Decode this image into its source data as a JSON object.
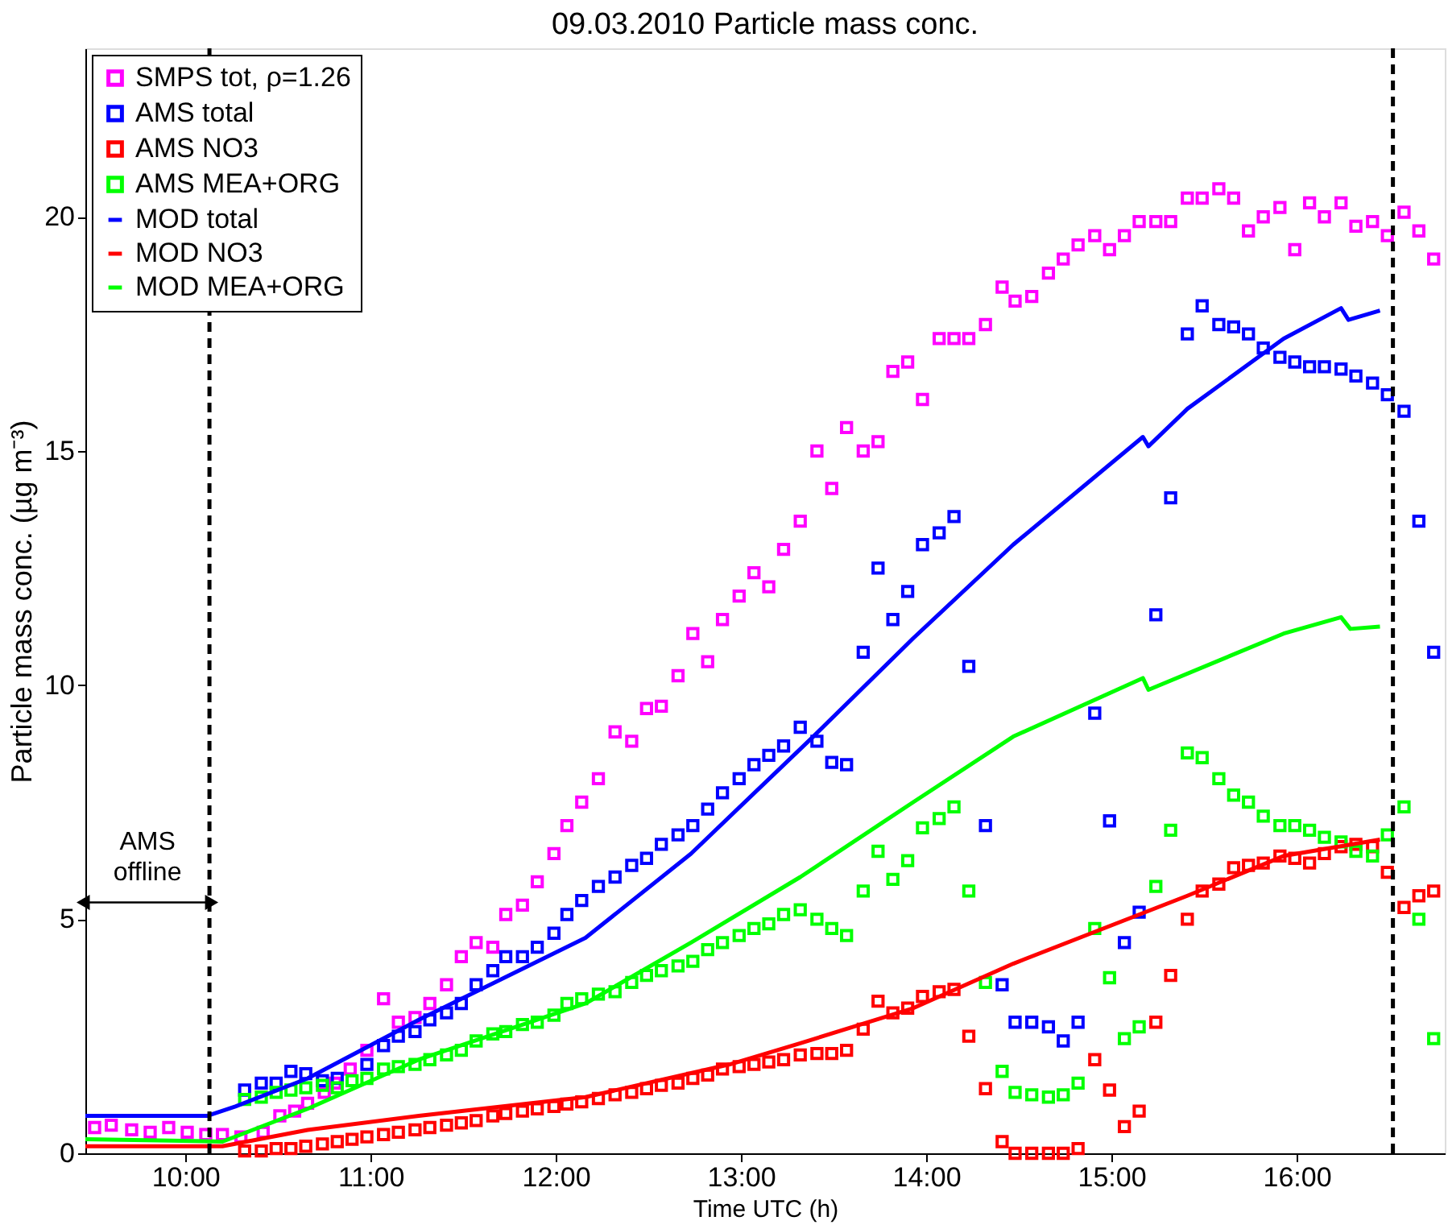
{
  "chart_data": {
    "type": "scatter",
    "title": "09.03.2010  Particle mass conc.",
    "xlabel": "Time UTC (h)",
    "ylabel": "Particle mass conc. (µg m⁻³)",
    "xlim": [
      9.46,
      16.8
    ],
    "ylim": [
      0,
      23.6
    ],
    "xticks": [
      {
        "value": 10,
        "label": "10:00"
      },
      {
        "value": 11,
        "label": "11:00"
      },
      {
        "value": 12,
        "label": "12:00"
      },
      {
        "value": 13,
        "label": "13:00"
      },
      {
        "value": 14,
        "label": "14:00"
      },
      {
        "value": 15,
        "label": "15:00"
      },
      {
        "value": 16,
        "label": "16:00"
      }
    ],
    "yticks": [
      0,
      5,
      10,
      15,
      20
    ],
    "grid": false,
    "legend": "top left",
    "marker": "square",
    "series": [
      {
        "name": "SMPS tot, ρ=1.26",
        "color": "#ff00ff",
        "x": [
          9.51,
          9.6,
          9.71,
          9.81,
          9.91,
          10.01,
          10.11,
          10.2,
          10.3,
          10.42,
          10.51,
          10.59,
          10.66,
          10.75,
          10.81,
          10.89,
          10.98,
          11.07,
          11.15,
          11.24,
          11.32,
          11.41,
          11.49,
          11.57,
          11.66,
          11.73,
          11.82,
          11.9,
          11.99,
          12.06,
          12.14,
          12.23,
          12.32,
          12.41,
          12.49,
          12.57,
          12.66,
          12.74,
          12.82,
          12.9,
          12.99,
          13.07,
          13.15,
          13.23,
          13.32,
          13.41,
          13.49,
          13.57,
          13.66,
          13.74,
          13.82,
          13.9,
          13.98,
          14.07,
          14.15,
          14.23,
          14.32,
          14.41,
          14.48,
          14.57,
          14.66,
          14.74,
          14.82,
          14.91,
          14.99,
          15.07,
          15.15,
          15.24,
          15.32,
          15.41,
          15.49,
          15.58,
          15.66,
          15.74,
          15.82,
          15.91,
          15.99,
          16.07,
          16.15,
          16.24,
          16.32,
          16.41,
          16.49,
          16.58,
          16.66,
          16.74
        ],
        "values": [
          0.55,
          0.6,
          0.5,
          0.45,
          0.55,
          0.45,
          0.4,
          0.4,
          0.35,
          0.45,
          0.8,
          0.9,
          1.07,
          1.3,
          1.5,
          1.8,
          2.2,
          3.3,
          2.8,
          2.9,
          3.2,
          3.6,
          4.2,
          4.5,
          4.4,
          5.1,
          5.3,
          5.8,
          6.4,
          7.0,
          7.5,
          8.0,
          9.0,
          8.8,
          9.5,
          9.55,
          10.2,
          11.1,
          10.5,
          11.4,
          11.9,
          12.4,
          12.1,
          12.9,
          13.5,
          15.0,
          14.2,
          15.5,
          15.0,
          15.2,
          16.7,
          16.9,
          16.1,
          17.4,
          17.4,
          17.4,
          17.7,
          18.5,
          18.2,
          18.3,
          18.8,
          19.1,
          19.4,
          19.6,
          19.3,
          19.6,
          19.9,
          19.9,
          19.9,
          20.4,
          20.4,
          20.6,
          20.4,
          19.7,
          20.0,
          20.2,
          19.3,
          20.3,
          20.0,
          20.3,
          19.8,
          19.9,
          19.6,
          20.1,
          19.7,
          19.1
        ]
      },
      {
        "name": "AMS total",
        "color": "#0000ff",
        "x": [
          10.32,
          10.41,
          10.49,
          10.57,
          10.65,
          10.74,
          10.82,
          10.9,
          10.98,
          11.07,
          11.15,
          11.24,
          11.32,
          11.41,
          11.49,
          11.57,
          11.66,
          11.73,
          11.82,
          11.9,
          11.99,
          12.06,
          12.14,
          12.23,
          12.32,
          12.41,
          12.49,
          12.57,
          12.66,
          12.74,
          12.82,
          12.9,
          12.99,
          13.07,
          13.15,
          13.23,
          13.32,
          13.41,
          13.49,
          13.57,
          13.66,
          13.74,
          13.82,
          13.9,
          13.98,
          14.07,
          14.15,
          14.23,
          14.32,
          14.41,
          14.48,
          14.57,
          14.66,
          14.74,
          14.82,
          14.91,
          14.99,
          15.07,
          15.15,
          15.24,
          15.32,
          15.41,
          15.49,
          15.58,
          15.66,
          15.74,
          15.82,
          15.91,
          15.99,
          16.07,
          16.15,
          16.24,
          16.32,
          16.41,
          16.49,
          16.58,
          16.66,
          16.74
        ],
        "values": [
          1.35,
          1.5,
          1.5,
          1.75,
          1.7,
          1.55,
          1.6,
          null,
          1.9,
          2.3,
          2.5,
          2.6,
          2.85,
          3.0,
          3.2,
          3.6,
          3.9,
          4.2,
          4.2,
          4.4,
          4.7,
          5.1,
          5.4,
          5.7,
          5.9,
          6.15,
          6.3,
          6.6,
          6.8,
          7.0,
          7.35,
          7.7,
          8.0,
          8.3,
          8.5,
          8.7,
          9.1,
          8.8,
          8.35,
          8.3,
          10.7,
          12.5,
          11.4,
          12.0,
          13.0,
          13.25,
          13.6,
          10.4,
          7.0,
          3.6,
          2.8,
          2.8,
          2.7,
          2.4,
          2.8,
          9.4,
          7.1,
          4.5,
          5.15,
          11.5,
          14.0,
          17.5,
          18.1,
          17.7,
          17.65,
          17.5,
          17.2,
          17.0,
          16.9,
          16.8,
          16.8,
          16.75,
          16.6,
          16.45,
          16.2,
          15.85,
          13.5,
          10.7
        ]
      },
      {
        "name": "AMS NO3",
        "color": "#ff0000",
        "x": [
          10.32,
          10.41,
          10.49,
          10.57,
          10.65,
          10.74,
          10.82,
          10.9,
          10.98,
          11.07,
          11.15,
          11.24,
          11.32,
          11.41,
          11.49,
          11.57,
          11.66,
          11.73,
          11.82,
          11.9,
          11.99,
          12.06,
          12.14,
          12.23,
          12.32,
          12.41,
          12.49,
          12.57,
          12.66,
          12.74,
          12.82,
          12.9,
          12.99,
          13.07,
          13.15,
          13.23,
          13.32,
          13.41,
          13.49,
          13.57,
          13.66,
          13.74,
          13.82,
          13.9,
          13.98,
          14.07,
          14.15,
          14.23,
          14.32,
          14.41,
          14.48,
          14.57,
          14.66,
          14.74,
          14.82,
          14.91,
          14.99,
          15.07,
          15.15,
          15.24,
          15.32,
          15.41,
          15.49,
          15.58,
          15.66,
          15.74,
          15.82,
          15.91,
          15.99,
          16.07,
          16.15,
          16.24,
          16.32,
          16.41,
          16.49,
          16.58,
          16.66,
          16.74
        ],
        "values": [
          0.05,
          0.05,
          0.1,
          0.1,
          0.15,
          0.2,
          0.25,
          0.3,
          0.35,
          0.4,
          0.45,
          0.5,
          0.55,
          0.6,
          0.65,
          0.7,
          0.8,
          0.85,
          0.9,
          0.95,
          1.0,
          1.05,
          1.1,
          1.17,
          1.25,
          1.3,
          1.38,
          1.45,
          1.5,
          1.6,
          1.67,
          1.8,
          1.85,
          1.9,
          1.95,
          2.0,
          2.1,
          2.13,
          2.13,
          2.2,
          2.65,
          3.25,
          3.0,
          3.1,
          3.35,
          3.45,
          3.5,
          2.5,
          1.38,
          0.25,
          0.0,
          0.0,
          0.0,
          0.0,
          0.1,
          2.0,
          1.35,
          0.57,
          0.9,
          2.8,
          3.8,
          5.0,
          5.6,
          5.75,
          6.1,
          6.15,
          6.2,
          6.35,
          6.3,
          6.2,
          6.4,
          6.55,
          6.6,
          6.55,
          6.0,
          5.25,
          5.5,
          5.6
        ]
      },
      {
        "name": "AMS MEA+ORG",
        "color": "#00ff00",
        "x": [
          10.32,
          10.41,
          10.49,
          10.57,
          10.65,
          10.74,
          10.82,
          10.9,
          10.98,
          11.07,
          11.15,
          11.24,
          11.32,
          11.41,
          11.49,
          11.57,
          11.66,
          11.73,
          11.82,
          11.9,
          11.99,
          12.06,
          12.14,
          12.23,
          12.32,
          12.41,
          12.49,
          12.57,
          12.66,
          12.74,
          12.82,
          12.9,
          12.99,
          13.07,
          13.15,
          13.23,
          13.32,
          13.41,
          13.49,
          13.57,
          13.66,
          13.74,
          13.82,
          13.9,
          13.98,
          14.07,
          14.15,
          14.23,
          14.32,
          14.41,
          14.48,
          14.57,
          14.66,
          14.74,
          14.82,
          14.91,
          14.99,
          15.07,
          15.15,
          15.24,
          15.32,
          15.41,
          15.49,
          15.58,
          15.66,
          15.74,
          15.82,
          15.91,
          15.99,
          16.07,
          16.15,
          16.24,
          16.32,
          16.41,
          16.49,
          16.58,
          16.66,
          16.74
        ],
        "values": [
          1.15,
          1.2,
          1.3,
          1.35,
          1.4,
          1.45,
          1.4,
          1.55,
          1.6,
          1.8,
          1.85,
          1.9,
          2.0,
          2.1,
          2.2,
          2.4,
          2.55,
          2.6,
          2.75,
          2.8,
          2.95,
          3.2,
          3.3,
          3.4,
          3.45,
          3.65,
          3.8,
          3.9,
          4.0,
          4.1,
          4.35,
          4.5,
          4.65,
          4.8,
          4.9,
          5.1,
          5.2,
          5.0,
          4.8,
          4.65,
          5.6,
          6.45,
          5.85,
          6.25,
          6.95,
          7.15,
          7.4,
          5.6,
          3.65,
          1.75,
          1.3,
          1.25,
          1.2,
          1.25,
          1.5,
          4.8,
          3.75,
          2.45,
          2.7,
          5.7,
          6.9,
          8.55,
          8.45,
          8.0,
          7.65,
          7.5,
          7.2,
          7.0,
          7.0,
          6.9,
          6.75,
          6.65,
          6.45,
          6.35,
          6.8,
          7.4,
          5.0,
          2.45
        ]
      },
      {
        "name": "MOD total",
        "type": "line",
        "marker": "none",
        "color": "#0000ff",
        "x": [
          9.46,
          10.12,
          10.27,
          10.66,
          11.26,
          12.16,
          12.73,
          13.39,
          13.93,
          14.47,
          15.17,
          15.2,
          15.41,
          15.93,
          16.24,
          16.28,
          16.45
        ],
        "values": [
          0.8,
          0.8,
          1.0,
          1.6,
          2.85,
          4.6,
          6.4,
          8.9,
          11.0,
          13.0,
          15.3,
          15.1,
          15.9,
          17.4,
          18.05,
          17.8,
          18.0
        ]
      },
      {
        "name": "MOD NO3",
        "type": "line",
        "marker": "none",
        "color": "#ff0000",
        "x": [
          9.46,
          10.2,
          10.66,
          11.26,
          12.16,
          12.94,
          13.32,
          13.93,
          14.47,
          15.41,
          15.93,
          16.45
        ],
        "values": [
          0.15,
          0.15,
          0.5,
          0.8,
          1.2,
          1.9,
          2.35,
          3.1,
          4.05,
          5.5,
          6.35,
          6.7
        ]
      },
      {
        "name": "MOD MEA+ORG",
        "type": "line",
        "marker": "none",
        "color": "#00ff00",
        "x": [
          9.46,
          10.2,
          10.66,
          11.26,
          12.16,
          12.73,
          13.32,
          13.93,
          14.47,
          15.17,
          15.2,
          15.93,
          16.24,
          16.29,
          16.45
        ],
        "values": [
          0.3,
          0.25,
          0.95,
          2.0,
          3.2,
          4.5,
          5.9,
          7.5,
          8.9,
          10.15,
          9.9,
          11.1,
          11.45,
          11.2,
          11.25
        ]
      }
    ],
    "ref_lines": [
      {
        "axis": "x",
        "value": 10.13,
        "color": "#000000",
        "line_style": "dashed"
      },
      {
        "axis": "x",
        "value": 16.52,
        "color": "#000000",
        "line_style": "dashed"
      }
    ],
    "annotations": [
      "AMS\noffline"
    ]
  }
}
